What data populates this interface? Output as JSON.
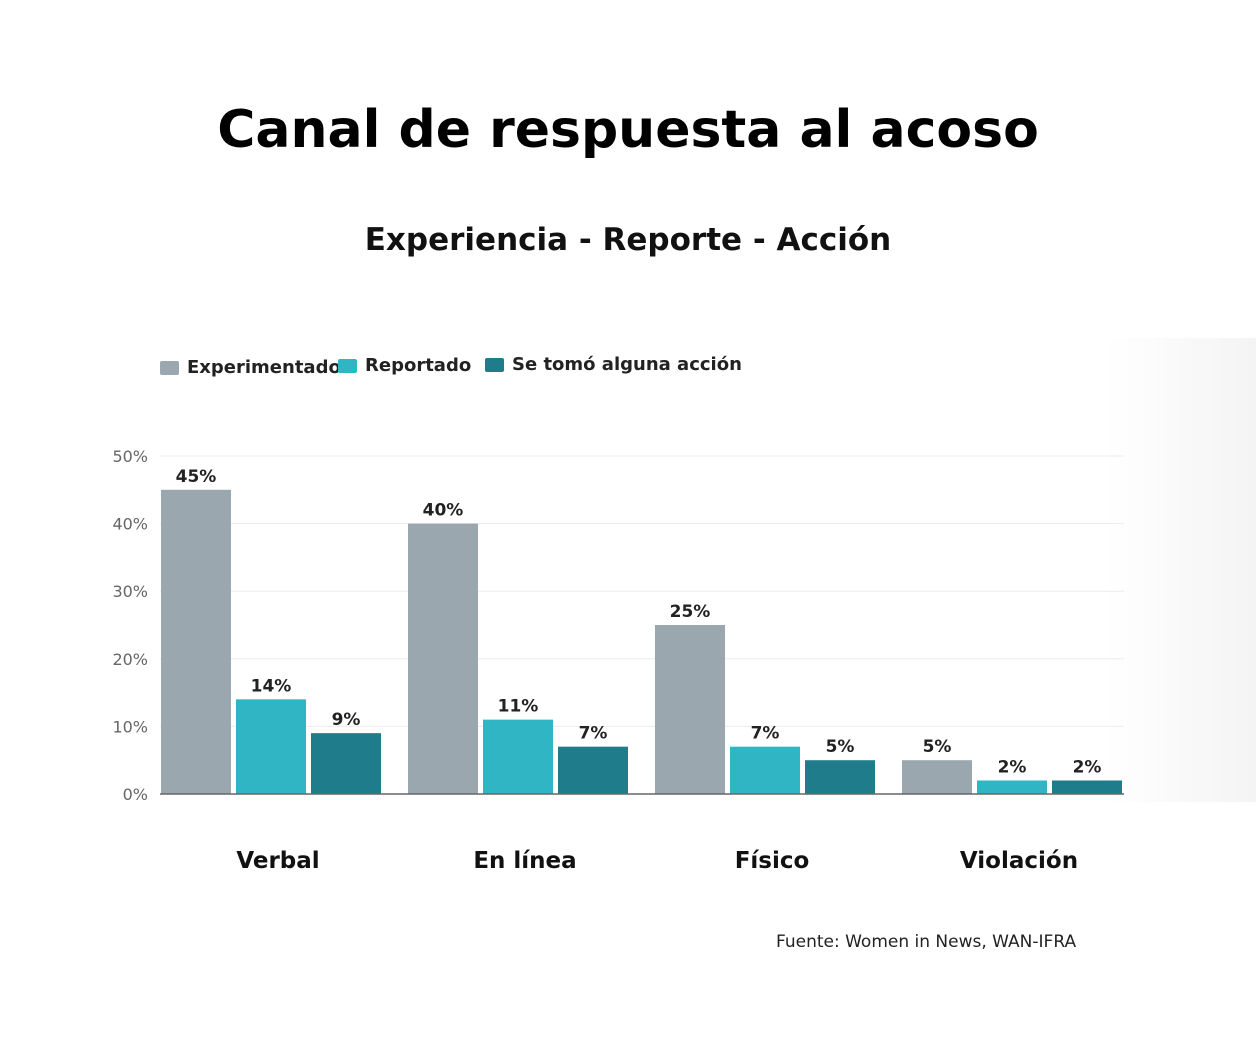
{
  "colors": {
    "Experimentado": "#9aa7ae",
    "Reportado": "#30b5c5",
    "Se tomó alguna acción": "#1f7d8b"
  },
  "chart_data": {
    "type": "bar",
    "title": "Canal de respuesta al acoso",
    "subtitle": "Experiencia - Reporte - Acción",
    "categories": [
      "Verbal",
      "En línea",
      "Físico",
      "Violación"
    ],
    "series": [
      {
        "name": "Experimentado",
        "values": [
          45,
          40,
          25,
          5
        ],
        "labels": [
          "45%",
          "40%",
          "25%",
          "5%"
        ]
      },
      {
        "name": "Reportado",
        "values": [
          14,
          11,
          7,
          2
        ],
        "labels": [
          "14%",
          "11%",
          "7%",
          "2%"
        ]
      },
      {
        "name": "Se tomó alguna acción",
        "values": [
          9,
          7,
          5,
          2
        ],
        "labels": [
          "9%",
          "7%",
          "5%",
          "2%"
        ]
      }
    ],
    "yticks": [
      "0%",
      "10%",
      "20%",
      "30%",
      "40%",
      "50%"
    ],
    "ylim": [
      0,
      50
    ],
    "grid": true,
    "legend": "top-left",
    "source": "Fuente: Women in News, WAN-IFRA"
  }
}
